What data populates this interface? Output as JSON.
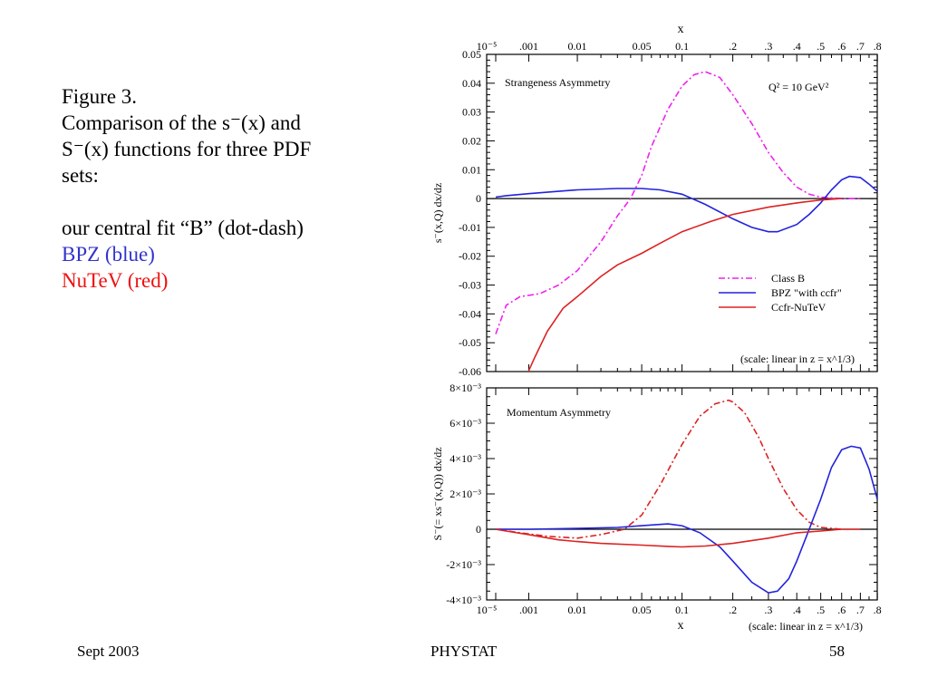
{
  "caption": {
    "line1": "Figure 3.",
    "line2": "Comparison of the s⁻(x) and",
    "line3": "S⁻(x) functions for three PDF",
    "line4": "sets:",
    "line5": "our central fit “B” (dot-dash)",
    "line6": "BPZ (blue)",
    "line7": "NuTeV (red)"
  },
  "footer": {
    "left": "Sept 2003",
    "center": "PHYSTAT",
    "right": "58"
  },
  "colors": {
    "classB_top": "#ee22ee",
    "classB_bottom": "#dd2222",
    "bpz": "#2222dd",
    "nutev": "#dd2222",
    "caption_blue": "#3333cc",
    "caption_red": "#ee1111"
  },
  "chart_data": [
    {
      "type": "line",
      "title": "Strangeness Asymmetry",
      "annotation": "Q² = 10 GeV²",
      "scale_note": "(scale: linear in z = x^1/3)",
      "xlabel": "x",
      "ylabel": "s⁻(x,Q) dx/dz",
      "x_scale": "z = x^(1/3)",
      "xlim": [
        0.0,
        0.928
      ],
      "ylim": [
        -0.06,
        0.05
      ],
      "x_tick_labels": [
        "10⁻⁵",
        ".001",
        "0.01",
        "0.05",
        "0.1",
        ".2",
        ".3",
        ".4",
        ".5",
        ".6",
        ".7",
        ".8"
      ],
      "y_tick_labels": [
        "0.05",
        "0.04",
        "0.03",
        "0.02",
        "0.01",
        "0",
        "-0.01",
        "-0.02",
        "-0.03",
        "-0.04",
        "-0.05",
        "-0.06"
      ],
      "legend_position": "bottom-right",
      "series": [
        {
          "name": "Class B",
          "style": "dash-dot",
          "x": [
            1e-05,
            0.0001,
            0.0005,
            0.002,
            0.005,
            0.01,
            0.02,
            0.03,
            0.04,
            0.05,
            0.06,
            0.08,
            0.1,
            0.12,
            0.14,
            0.17,
            0.2,
            0.25,
            0.3,
            0.35,
            0.4,
            0.45,
            0.5,
            0.6,
            0.7
          ],
          "y": [
            -0.047,
            -0.037,
            -0.034,
            -0.033,
            -0.03,
            -0.025,
            -0.015,
            -0.006,
            0.0,
            0.008,
            0.018,
            0.031,
            0.039,
            0.043,
            0.044,
            0.042,
            0.036,
            0.026,
            0.016,
            0.009,
            0.004,
            0.0015,
            0.0005,
            0.0,
            0.0
          ]
        },
        {
          "name": "BPZ \"with ccfr\"",
          "style": "solid",
          "x": [
            1e-05,
            0.0001,
            0.001,
            0.005,
            0.01,
            0.03,
            0.05,
            0.07,
            0.1,
            0.14,
            0.2,
            0.25,
            0.3,
            0.33,
            0.4,
            0.45,
            0.5,
            0.55,
            0.6,
            0.64,
            0.7,
            0.75,
            0.8
          ],
          "y": [
            0.0005,
            0.001,
            0.0017,
            0.0025,
            0.003,
            0.0035,
            0.0035,
            0.003,
            0.0015,
            -0.002,
            -0.007,
            -0.01,
            -0.0115,
            -0.0115,
            -0.009,
            -0.0055,
            -0.0015,
            0.003,
            0.0065,
            0.0077,
            0.0073,
            0.005,
            0.0025
          ]
        },
        {
          "name": "Ccfr-NuTeV",
          "style": "solid",
          "x": [
            0.0008,
            0.0015,
            0.003,
            0.006,
            0.01,
            0.02,
            0.03,
            0.05,
            0.07,
            0.1,
            0.15,
            0.2,
            0.3,
            0.4,
            0.5,
            0.6
          ],
          "y": [
            -0.062,
            -0.055,
            -0.046,
            -0.038,
            -0.034,
            -0.027,
            -0.023,
            -0.019,
            -0.0155,
            -0.0115,
            -0.008,
            -0.0055,
            -0.003,
            -0.0015,
            -0.0005,
            0.0
          ]
        }
      ]
    },
    {
      "type": "line",
      "title": "Momentum Asymmetry",
      "scale_note": "(scale: linear in z = x^1/3)",
      "xlabel": "x",
      "ylabel": "S⁻(= xs⁻(x,Q)) dx/dz",
      "x_scale": "z = x^(1/3)",
      "xlim": [
        0.0,
        0.928
      ],
      "ylim": [
        -0.004,
        0.008
      ],
      "x_tick_labels": [
        "10⁻⁵",
        ".001",
        "0.01",
        "0.05",
        "0.1",
        ".2",
        ".3",
        ".4",
        ".5",
        ".6",
        ".7",
        ".8"
      ],
      "y_tick_labels": [
        "8×10⁻³",
        "6×10⁻³",
        "4×10⁻³",
        "2×10⁻³",
        "0",
        "-2×10⁻³",
        "-4×10⁻³"
      ],
      "series": [
        {
          "name": "Class B",
          "style": "dash-dot",
          "x": [
            1e-05,
            0.0005,
            0.003,
            0.01,
            0.02,
            0.035,
            0.05,
            0.07,
            0.1,
            0.13,
            0.16,
            0.19,
            0.2,
            0.23,
            0.27,
            0.3,
            0.35,
            0.4,
            0.45,
            0.5,
            0.6
          ],
          "y": [
            0.0,
            -0.0002,
            -0.0004,
            -0.0005,
            -0.0003,
            0.0,
            0.0008,
            0.0025,
            0.0048,
            0.0064,
            0.0071,
            0.0073,
            0.0072,
            0.0066,
            0.0052,
            0.004,
            0.0023,
            0.0011,
            0.0004,
            0.0001,
            0.0
          ]
        },
        {
          "name": "BPZ \"with ccfr\"",
          "style": "solid",
          "x": [
            1e-05,
            0.001,
            0.01,
            0.03,
            0.05,
            0.08,
            0.1,
            0.13,
            0.17,
            0.2,
            0.25,
            0.3,
            0.33,
            0.37,
            0.4,
            0.45,
            0.5,
            0.55,
            0.6,
            0.65,
            0.7,
            0.75,
            0.8
          ],
          "y": [
            0.0,
            0.0,
            5e-05,
            0.0001,
            0.0002,
            0.0003,
            0.0002,
            -0.0002,
            -0.001,
            -0.0018,
            -0.003,
            -0.0036,
            -0.0035,
            -0.0028,
            -0.0018,
            0.0,
            0.0017,
            0.0035,
            0.0045,
            0.0047,
            0.0046,
            0.0034,
            0.0017
          ]
        },
        {
          "name": "Ccfr-NuTeV",
          "style": "solid",
          "x": [
            1e-05,
            0.0001,
            0.001,
            0.005,
            0.01,
            0.02,
            0.05,
            0.08,
            0.1,
            0.14,
            0.2,
            0.3,
            0.4,
            0.5,
            0.6,
            0.7
          ],
          "y": [
            0.0,
            -0.0001,
            -0.0003,
            -0.0006,
            -0.0007,
            -0.0008,
            -0.0009,
            -0.00097,
            -0.001,
            -0.00095,
            -0.0008,
            -0.0005,
            -0.0002,
            -0.0001,
            0.0,
            0.0
          ]
        }
      ]
    }
  ]
}
